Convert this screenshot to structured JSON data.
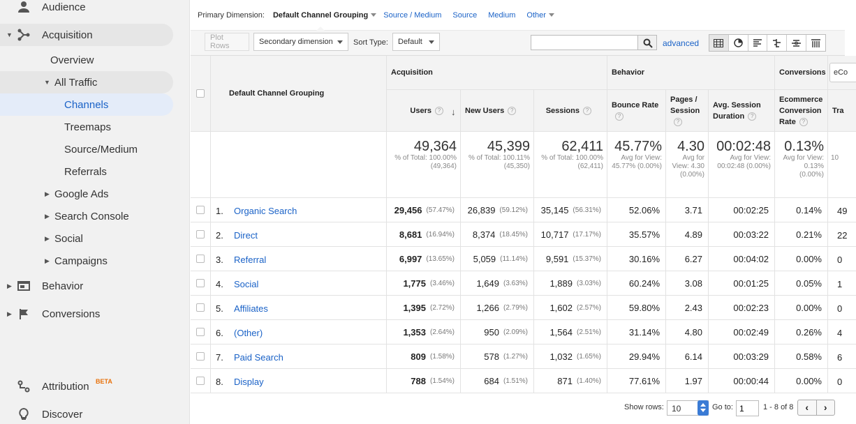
{
  "sidebar": {
    "audience": "Audience",
    "acquisition": "Acquisition",
    "overview": "Overview",
    "all_traffic": "All Traffic",
    "channels": "Channels",
    "treemaps": "Treemaps",
    "source_medium": "Source/Medium",
    "referrals": "Referrals",
    "google_ads": "Google Ads",
    "search_console": "Search Console",
    "social": "Social",
    "campaigns": "Campaigns",
    "behavior": "Behavior",
    "conversions": "Conversions",
    "attribution": "Attribution",
    "beta": "BETA",
    "discover": "Discover"
  },
  "dimbar": {
    "label": "Primary Dimension:",
    "current": "Default Channel Grouping",
    "links": [
      "Source / Medium",
      "Source",
      "Medium"
    ],
    "other": "Other"
  },
  "toolbar": {
    "plot_rows": "Plot Rows",
    "secondary": "Secondary dimension",
    "sort_label": "Sort Type:",
    "sort_value": "Default",
    "search_value": "",
    "advanced": "advanced"
  },
  "table": {
    "dim_header": "Default Channel Grouping",
    "groups": {
      "acquisition": "Acquisition",
      "behavior": "Behavior",
      "conversions": "Conversions",
      "ecommerce_select": "eCo"
    },
    "cols": {
      "users": "Users",
      "new_users": "New Users",
      "sessions": "Sessions",
      "bounce": "Bounce Rate",
      "pages": "Pages / Session",
      "duration": "Avg. Session Duration",
      "ecr": "Ecommerce Conversion Rate",
      "tra": "Tra"
    },
    "totals": {
      "users": "49,364",
      "users_sub": "% of Total: 100.00% (49,364)",
      "new_users": "45,399",
      "new_users_sub": "% of Total: 100.11% (45,350)",
      "sessions": "62,411",
      "sessions_sub": "% of Total: 100.00% (62,411)",
      "bounce": "45.77%",
      "bounce_sub": "Avg for View: 45.77% (0.00%)",
      "pages": "4.30",
      "pages_sub": "Avg for View: 4.30 (0.00%)",
      "duration": "00:02:48",
      "duration_sub": "Avg for View: 00:02:48 (0.00%)",
      "ecr": "0.13%",
      "ecr_sub": "Avg for View: 0.13% (0.00%)",
      "tra_sub": "10"
    },
    "rows": [
      {
        "n": "1.",
        "name": "Organic Search",
        "users": "29,456",
        "users_pct": "(57.47%)",
        "new": "26,839",
        "new_pct": "(59.12%)",
        "sess": "35,145",
        "sess_pct": "(56.31%)",
        "bounce": "52.06%",
        "pages": "3.71",
        "dur": "00:02:25",
        "ecr": "0.14%",
        "tra": "49"
      },
      {
        "n": "2.",
        "name": "Direct",
        "users": "8,681",
        "users_pct": "(16.94%)",
        "new": "8,374",
        "new_pct": "(18.45%)",
        "sess": "10,717",
        "sess_pct": "(17.17%)",
        "bounce": "35.57%",
        "pages": "4.89",
        "dur": "00:03:22",
        "ecr": "0.21%",
        "tra": "22"
      },
      {
        "n": "3.",
        "name": "Referral",
        "users": "6,997",
        "users_pct": "(13.65%)",
        "new": "5,059",
        "new_pct": "(11.14%)",
        "sess": "9,591",
        "sess_pct": "(15.37%)",
        "bounce": "30.16%",
        "pages": "6.27",
        "dur": "00:04:02",
        "ecr": "0.00%",
        "tra": "0"
      },
      {
        "n": "4.",
        "name": "Social",
        "users": "1,775",
        "users_pct": "(3.46%)",
        "new": "1,649",
        "new_pct": "(3.63%)",
        "sess": "1,889",
        "sess_pct": "(3.03%)",
        "bounce": "60.24%",
        "pages": "3.08",
        "dur": "00:01:25",
        "ecr": "0.05%",
        "tra": "1"
      },
      {
        "n": "5.",
        "name": "Affiliates",
        "users": "1,395",
        "users_pct": "(2.72%)",
        "new": "1,266",
        "new_pct": "(2.79%)",
        "sess": "1,602",
        "sess_pct": "(2.57%)",
        "bounce": "59.80%",
        "pages": "2.43",
        "dur": "00:02:23",
        "ecr": "0.00%",
        "tra": "0"
      },
      {
        "n": "6.",
        "name": "(Other)",
        "users": "1,353",
        "users_pct": "(2.64%)",
        "new": "950",
        "new_pct": "(2.09%)",
        "sess": "1,564",
        "sess_pct": "(2.51%)",
        "bounce": "31.14%",
        "pages": "4.80",
        "dur": "00:02:49",
        "ecr": "0.26%",
        "tra": "4"
      },
      {
        "n": "7.",
        "name": "Paid Search",
        "users": "809",
        "users_pct": "(1.58%)",
        "new": "578",
        "new_pct": "(1.27%)",
        "sess": "1,032",
        "sess_pct": "(1.65%)",
        "bounce": "29.94%",
        "pages": "6.14",
        "dur": "00:03:29",
        "ecr": "0.58%",
        "tra": "6"
      },
      {
        "n": "8.",
        "name": "Display",
        "users": "788",
        "users_pct": "(1.54%)",
        "new": "684",
        "new_pct": "(1.51%)",
        "sess": "871",
        "sess_pct": "(1.40%)",
        "bounce": "77.61%",
        "pages": "1.97",
        "dur": "00:00:44",
        "ecr": "0.00%",
        "tra": "0"
      }
    ]
  },
  "footer": {
    "show_rows_label": "Show rows:",
    "show_rows_value": "10",
    "goto_label": "Go to:",
    "goto_value": "1",
    "range": "1 - 8 of 8"
  }
}
